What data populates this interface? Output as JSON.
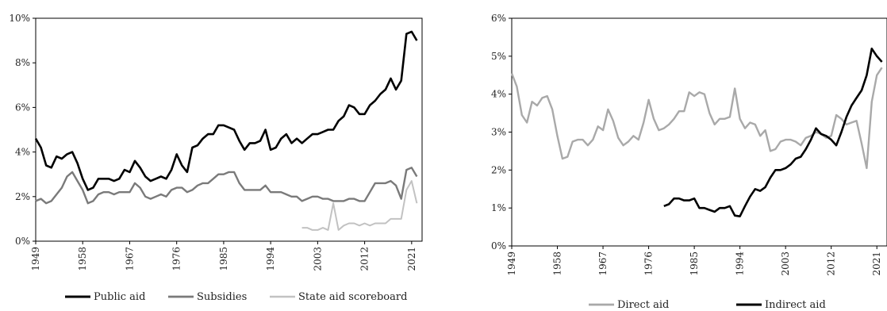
{
  "chart_data": [
    {
      "type": "line",
      "title": "",
      "xlabel": "",
      "ylabel": "",
      "xlim": [
        1949,
        2023
      ],
      "ylim": [
        0,
        10
      ],
      "x_ticks": [
        "1949",
        "1958",
        "1967",
        "1976",
        "1985",
        "1994",
        "2003",
        "2012",
        "2021"
      ],
      "y_ticks": [
        "0%",
        "2%",
        "4%",
        "6%",
        "8%",
        "10%"
      ],
      "grid": false,
      "legend_position": "bottom",
      "series": [
        {
          "name": "Public aid",
          "color": "#000000",
          "x": [
            1949,
            1950,
            1951,
            1952,
            1953,
            1954,
            1955,
            1956,
            1957,
            1958,
            1959,
            1960,
            1961,
            1962,
            1963,
            1964,
            1965,
            1966,
            1967,
            1968,
            1969,
            1970,
            1971,
            1972,
            1973,
            1974,
            1975,
            1976,
            1977,
            1978,
            1979,
            1980,
            1981,
            1982,
            1983,
            1984,
            1985,
            1986,
            1987,
            1988,
            1989,
            1990,
            1991,
            1992,
            1993,
            1994,
            1995,
            1996,
            1997,
            1998,
            1999,
            2000,
            2001,
            2002,
            2003,
            2004,
            2005,
            2006,
            2007,
            2008,
            2009,
            2010,
            2011,
            2012,
            2013,
            2014,
            2015,
            2016,
            2017,
            2018,
            2019,
            2020,
            2021,
            2022
          ],
          "y": [
            4.6,
            4.2,
            3.4,
            3.3,
            3.8,
            3.7,
            3.9,
            4.0,
            3.5,
            2.8,
            2.3,
            2.4,
            2.8,
            2.8,
            2.8,
            2.7,
            2.8,
            3.2,
            3.1,
            3.6,
            3.3,
            2.9,
            2.7,
            2.8,
            2.9,
            2.8,
            3.2,
            3.9,
            3.4,
            3.1,
            4.2,
            4.3,
            4.6,
            4.8,
            4.8,
            5.2,
            5.2,
            5.1,
            5.0,
            4.5,
            4.1,
            4.4,
            4.4,
            4.5,
            5.0,
            4.1,
            4.2,
            4.6,
            4.8,
            4.4,
            4.6,
            4.4,
            4.6,
            4.8,
            4.8,
            4.9,
            5.0,
            5.0,
            5.4,
            5.6,
            6.1,
            6.0,
            5.7,
            5.7,
            6.1,
            6.3,
            6.6,
            6.8,
            7.3,
            6.8,
            7.2,
            9.3,
            9.4,
            9.0
          ]
        },
        {
          "name": "Subsidies",
          "color": "#7a7a7a",
          "x": [
            1949,
            1950,
            1951,
            1952,
            1953,
            1954,
            1955,
            1956,
            1957,
            1958,
            1959,
            1960,
            1961,
            1962,
            1963,
            1964,
            1965,
            1966,
            1967,
            1968,
            1969,
            1970,
            1971,
            1972,
            1973,
            1974,
            1975,
            1976,
            1977,
            1978,
            1979,
            1980,
            1981,
            1982,
            1983,
            1984,
            1985,
            1986,
            1987,
            1988,
            1989,
            1990,
            1991,
            1992,
            1993,
            1994,
            1995,
            1996,
            1997,
            1998,
            1999,
            2000,
            2001,
            2002,
            2003,
            2004,
            2005,
            2006,
            2007,
            2008,
            2009,
            2010,
            2011,
            2012,
            2013,
            2014,
            2015,
            2016,
            2017,
            2018,
            2019,
            2020,
            2021,
            2022
          ],
          "y": [
            1.8,
            1.9,
            1.7,
            1.8,
            2.1,
            2.4,
            2.9,
            3.1,
            2.7,
            2.3,
            1.7,
            1.8,
            2.1,
            2.2,
            2.2,
            2.1,
            2.2,
            2.2,
            2.2,
            2.6,
            2.4,
            2.0,
            1.9,
            2.0,
            2.1,
            2.0,
            2.3,
            2.4,
            2.4,
            2.2,
            2.3,
            2.5,
            2.6,
            2.6,
            2.8,
            3.0,
            3.0,
            3.1,
            3.1,
            2.6,
            2.3,
            2.3,
            2.3,
            2.3,
            2.5,
            2.2,
            2.2,
            2.2,
            2.1,
            2.0,
            2.0,
            1.8,
            1.9,
            2.0,
            2.0,
            1.9,
            1.9,
            1.8,
            1.8,
            1.8,
            1.9,
            1.9,
            1.8,
            1.8,
            2.2,
            2.6,
            2.6,
            2.6,
            2.7,
            2.5,
            1.9,
            3.2,
            3.3,
            2.9
          ]
        },
        {
          "name": "State aid scoreboard",
          "color": "#c2c2c2",
          "x": [
            2000,
            2001,
            2002,
            2003,
            2004,
            2005,
            2006,
            2007,
            2008,
            2009,
            2010,
            2011,
            2012,
            2013,
            2014,
            2015,
            2016,
            2017,
            2018,
            2019,
            2020,
            2021,
            2022
          ],
          "y": [
            0.6,
            0.6,
            0.5,
            0.5,
            0.6,
            0.5,
            1.7,
            0.5,
            0.7,
            0.8,
            0.8,
            0.7,
            0.8,
            0.7,
            0.8,
            0.8,
            0.8,
            1.0,
            1.0,
            1.0,
            2.3,
            2.7,
            1.7
          ]
        }
      ]
    },
    {
      "type": "line",
      "title": "",
      "xlabel": "",
      "ylabel": "",
      "xlim": [
        1949,
        2023
      ],
      "ylim": [
        0,
        6
      ],
      "x_ticks": [
        "1949",
        "1958",
        "1967",
        "1976",
        "1985",
        "1994",
        "2003",
        "2012",
        "2021"
      ],
      "y_ticks": [
        "0%",
        "1%",
        "2%",
        "3%",
        "4%",
        "5%",
        "6%"
      ],
      "grid": false,
      "legend_position": "bottom",
      "series": [
        {
          "name": "Direct aid",
          "color": "#a9a9a9",
          "x": [
            1949,
            1950,
            1951,
            1952,
            1953,
            1954,
            1955,
            1956,
            1957,
            1958,
            1959,
            1960,
            1961,
            1962,
            1963,
            1964,
            1965,
            1966,
            1967,
            1968,
            1969,
            1970,
            1971,
            1972,
            1973,
            1974,
            1975,
            1976,
            1977,
            1978,
            1979,
            1980,
            1981,
            1982,
            1983,
            1984,
            1985,
            1986,
            1987,
            1988,
            1989,
            1990,
            1991,
            1992,
            1993,
            1994,
            1995,
            1996,
            1997,
            1998,
            1999,
            2000,
            2001,
            2002,
            2003,
            2004,
            2005,
            2006,
            2007,
            2008,
            2009,
            2010,
            2011,
            2012,
            2013,
            2014,
            2015,
            2016,
            2017,
            2018,
            2019,
            2020,
            2021,
            2022
          ],
          "y": [
            4.55,
            4.2,
            3.45,
            3.25,
            3.8,
            3.7,
            3.9,
            3.95,
            3.6,
            2.9,
            2.3,
            2.35,
            2.75,
            2.8,
            2.8,
            2.65,
            2.8,
            3.15,
            3.05,
            3.6,
            3.3,
            2.85,
            2.65,
            2.75,
            2.9,
            2.8,
            3.25,
            3.85,
            3.35,
            3.05,
            3.1,
            3.2,
            3.35,
            3.55,
            3.55,
            4.05,
            3.95,
            4.05,
            4.0,
            3.5,
            3.2,
            3.35,
            3.35,
            3.4,
            4.15,
            3.35,
            3.1,
            3.25,
            3.2,
            2.9,
            3.05,
            2.5,
            2.55,
            2.75,
            2.8,
            2.8,
            2.75,
            2.65,
            2.85,
            2.9,
            3.0,
            2.95,
            2.85,
            2.9,
            3.45,
            3.35,
            3.2,
            3.25,
            3.3,
            2.7,
            2.05,
            3.8,
            4.5,
            4.7
          ]
        },
        {
          "name": "Indirect aid",
          "color": "#000000",
          "x": [
            1979,
            1980,
            1981,
            1982,
            1983,
            1984,
            1985,
            1986,
            1987,
            1988,
            1989,
            1990,
            1991,
            1992,
            1993,
            1994,
            1995,
            1996,
            1997,
            1998,
            1999,
            2000,
            2001,
            2002,
            2003,
            2004,
            2005,
            2006,
            2007,
            2008,
            2009,
            2010,
            2011,
            2012,
            2013,
            2014,
            2015,
            2016,
            2017,
            2018,
            2019,
            2020,
            2021,
            2022
          ],
          "y": [
            1.05,
            1.1,
            1.25,
            1.25,
            1.2,
            1.2,
            1.25,
            1.0,
            1.0,
            0.95,
            0.9,
            1.0,
            1.0,
            1.05,
            0.8,
            0.78,
            1.05,
            1.3,
            1.5,
            1.45,
            1.55,
            1.8,
            2.0,
            2.0,
            2.05,
            2.15,
            2.3,
            2.35,
            2.55,
            2.8,
            3.1,
            2.95,
            2.9,
            2.8,
            2.65,
            3.0,
            3.4,
            3.7,
            3.9,
            4.1,
            4.5,
            5.2,
            5.0,
            4.85
          ]
        }
      ]
    }
  ]
}
